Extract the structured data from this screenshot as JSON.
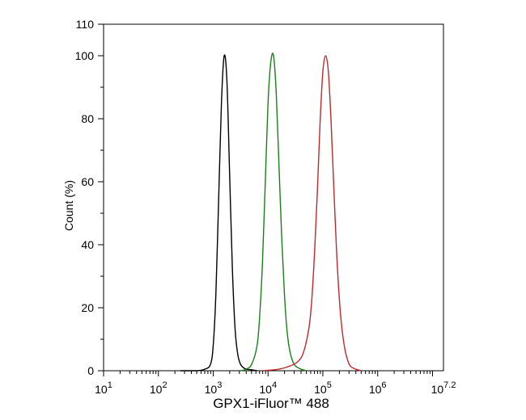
{
  "chart_data": {
    "type": "line",
    "title": "",
    "xlabel": "GPX1-iFluor™ 488",
    "ylabel": "Count  (%)",
    "x_scale": "log",
    "xlim": [
      10,
      15848931.92
    ],
    "ylim": [
      0,
      110
    ],
    "x_ticks": [
      {
        "base": "10",
        "exp": "1"
      },
      {
        "base": "10",
        "exp": "2"
      },
      {
        "base": "10",
        "exp": "3"
      },
      {
        "base": "10",
        "exp": "4"
      },
      {
        "base": "10",
        "exp": "5"
      },
      {
        "base": "10",
        "exp": "6"
      },
      {
        "base": "10",
        "exp": "7.2"
      }
    ],
    "y_ticks": [
      "0",
      "20",
      "40",
      "60",
      "80",
      "100",
      "110"
    ],
    "y_tick_values": [
      0,
      20,
      40,
      60,
      80,
      100,
      110
    ],
    "grid": false,
    "legend": "none",
    "series": [
      {
        "color": "#000000",
        "x": [
          251,
          501,
          708,
          891,
          1000,
          1122,
          1259,
          1413,
          1585,
          1778,
          1995,
          2239,
          2512,
          2818,
          3162,
          3548,
          3981,
          5012,
          6310
        ],
        "y": [
          0,
          0,
          0.5,
          2,
          8,
          25,
          55,
          85,
          100,
          92,
          62,
          32,
          13,
          5,
          2,
          1,
          0.5,
          0.3,
          0
        ]
      },
      {
        "color": "#1a7f1a",
        "x": [
          3162,
          3981,
          5012,
          6310,
          7079,
          7943,
          8913,
          10000,
          11220,
          12589,
          14125,
          15849,
          17783,
          19953,
          22387,
          25119,
          28184,
          31623,
          39811,
          50119
        ],
        "y": [
          0,
          0.5,
          2,
          8,
          18,
          35,
          60,
          85,
          98,
          100,
          88,
          65,
          42,
          24,
          12,
          6,
          3,
          1.5,
          0.5,
          0
        ]
      },
      {
        "color": "#c0282d",
        "x": [
          7943,
          15849,
          25119,
          35481,
          44668,
          56234,
          63096,
          70795,
          79433,
          89125,
          100000,
          112202,
          125893,
          141254,
          158489,
          177828,
          199526,
          223872,
          251189,
          281838,
          316228,
          398107,
          501187
        ],
        "y": [
          0,
          0.5,
          1.5,
          3,
          6,
          14,
          23,
          38,
          57,
          79,
          95,
          100,
          95,
          79,
          58,
          38,
          23,
          13,
          7,
          3.5,
          1.5,
          0.5,
          0
        ]
      }
    ]
  }
}
